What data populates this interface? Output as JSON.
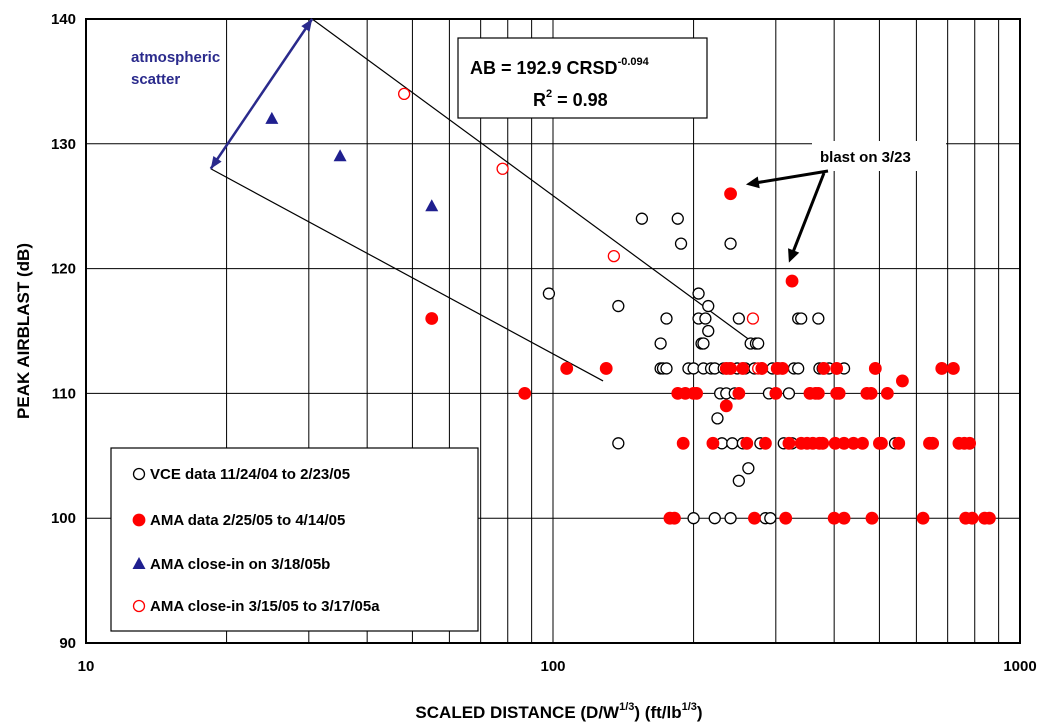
{
  "chart_data": {
    "type": "scatter",
    "title": "",
    "xlabel": {
      "base": "SCALED DISTANCE (D/W",
      "sup1": "1/3",
      "mid": ")  (ft/lb",
      "sup2": "1/3",
      "end": ")"
    },
    "ylabel": "PEAK AIRBLAST (dB)",
    "x_scale": "log",
    "xlim": [
      10,
      1000
    ],
    "ylim": [
      90,
      140
    ],
    "x_ticks": [
      10,
      100,
      1000
    ],
    "x_tick_labels": [
      "10",
      "100",
      "1000"
    ],
    "y_ticks": [
      90,
      100,
      110,
      120,
      130,
      140
    ],
    "y_tick_labels": [
      "90",
      "100",
      "110",
      "120",
      "130",
      "140"
    ],
    "grid": true,
    "legend_position": "bottom-left",
    "series": [
      {
        "name": "VCE data 11/24/04 to 2/23/05",
        "marker": "circle-open",
        "color": "#000000",
        "points": [
          [
            98,
            118
          ],
          [
            138,
            117
          ],
          [
            138,
            106
          ],
          [
            155,
            124
          ],
          [
            170,
            114
          ],
          [
            170,
            112
          ],
          [
            172,
            112
          ],
          [
            175,
            116
          ],
          [
            175,
            112
          ],
          [
            185,
            124
          ],
          [
            188,
            122
          ],
          [
            195,
            112
          ],
          [
            200,
            112
          ],
          [
            200,
            100
          ],
          [
            205,
            118
          ],
          [
            205,
            116
          ],
          [
            208,
            114
          ],
          [
            210,
            114
          ],
          [
            210,
            112
          ],
          [
            212,
            116
          ],
          [
            215,
            115
          ],
          [
            215,
            117
          ],
          [
            218,
            112
          ],
          [
            222,
            112
          ],
          [
            222,
            100
          ],
          [
            225,
            108
          ],
          [
            228,
            110
          ],
          [
            230,
            106
          ],
          [
            232,
            112
          ],
          [
            235,
            110
          ],
          [
            238,
            112
          ],
          [
            240,
            122
          ],
          [
            240,
            100
          ],
          [
            242,
            106
          ],
          [
            245,
            110
          ],
          [
            248,
            112
          ],
          [
            250,
            116
          ],
          [
            250,
            103
          ],
          [
            255,
            106
          ],
          [
            258,
            112
          ],
          [
            262,
            104
          ],
          [
            265,
            114
          ],
          [
            270,
            112
          ],
          [
            272,
            114
          ],
          [
            275,
            114
          ],
          [
            278,
            106
          ],
          [
            280,
            112
          ],
          [
            285,
            100
          ],
          [
            290,
            110
          ],
          [
            292,
            100
          ],
          [
            295,
            112
          ],
          [
            300,
            110
          ],
          [
            305,
            112
          ],
          [
            312,
            106
          ],
          [
            320,
            110
          ],
          [
            325,
            106
          ],
          [
            328,
            112
          ],
          [
            335,
            112
          ],
          [
            335,
            116
          ],
          [
            340,
            116
          ],
          [
            355,
            110
          ],
          [
            360,
            106
          ],
          [
            370,
            116
          ],
          [
            372,
            112
          ],
          [
            378,
            112
          ],
          [
            390,
            112
          ],
          [
            420,
            112
          ],
          [
            540,
            106
          ]
        ]
      },
      {
        "name": "AMA data 2/25/05 to 4/14/05",
        "marker": "circle-filled",
        "color": "#ff0000",
        "points": [
          [
            55,
            116
          ],
          [
            87,
            110
          ],
          [
            107,
            112
          ],
          [
            130,
            112
          ],
          [
            178,
            100
          ],
          [
            182,
            100
          ],
          [
            185,
            110
          ],
          [
            190,
            106
          ],
          [
            192,
            110
          ],
          [
            200,
            110
          ],
          [
            203,
            110
          ],
          [
            220,
            106
          ],
          [
            235,
            109
          ],
          [
            235,
            112
          ],
          [
            240,
            112
          ],
          [
            240,
            126
          ],
          [
            250,
            110
          ],
          [
            255,
            112
          ],
          [
            260,
            106
          ],
          [
            270,
            100
          ],
          [
            280,
            112
          ],
          [
            285,
            106
          ],
          [
            300,
            110
          ],
          [
            302,
            112
          ],
          [
            310,
            112
          ],
          [
            315,
            100
          ],
          [
            320,
            106
          ],
          [
            325,
            119
          ],
          [
            340,
            106
          ],
          [
            350,
            106
          ],
          [
            355,
            110
          ],
          [
            360,
            106
          ],
          [
            365,
            110
          ],
          [
            370,
            110
          ],
          [
            372,
            106
          ],
          [
            378,
            106
          ],
          [
            380,
            112
          ],
          [
            400,
            100
          ],
          [
            402,
            106
          ],
          [
            405,
            110
          ],
          [
            405,
            112
          ],
          [
            410,
            110
          ],
          [
            420,
            106
          ],
          [
            420,
            100
          ],
          [
            440,
            106
          ],
          [
            460,
            106
          ],
          [
            470,
            110
          ],
          [
            480,
            110
          ],
          [
            482,
            100
          ],
          [
            490,
            112
          ],
          [
            500,
            106
          ],
          [
            505,
            106
          ],
          [
            520,
            110
          ],
          [
            550,
            106
          ],
          [
            560,
            111
          ],
          [
            620,
            100
          ],
          [
            640,
            106
          ],
          [
            650,
            106
          ],
          [
            680,
            112
          ],
          [
            720,
            112
          ],
          [
            740,
            106
          ],
          [
            760,
            106
          ],
          [
            765,
            100
          ],
          [
            780,
            106
          ],
          [
            790,
            100
          ],
          [
            840,
            100
          ],
          [
            860,
            100
          ]
        ]
      },
      {
        "name": "AMA close-in on 3/18/05b",
        "marker": "triangle-filled",
        "color": "#1f1f8f",
        "points": [
          [
            25,
            132
          ],
          [
            35,
            129
          ],
          [
            55,
            125
          ]
        ]
      },
      {
        "name": "AMA close-in 3/15/05 to 3/17/05a",
        "marker": "circle-open",
        "color": "#ff0000",
        "points": [
          [
            48,
            134
          ],
          [
            78,
            128
          ],
          [
            135,
            121
          ],
          [
            268,
            116
          ],
          [
            275,
            112
          ]
        ]
      }
    ],
    "lines": [
      {
        "from": [
          30.5,
          140
        ],
        "to": [
          270,
          114
        ]
      },
      {
        "from": [
          18.5,
          128
        ],
        "to": [
          128,
          111
        ]
      }
    ],
    "scatter_arrow": {
      "from": [
        30.5,
        140
      ],
      "to": [
        18.5,
        128
      ]
    },
    "annotations": {
      "scatter_line1": "atmospheric",
      "scatter_line2": "scatter",
      "blast": "blast on 3/23",
      "blast_arrows": [
        {
          "to": [
            244,
            126.5
          ]
        },
        {
          "to": [
            320,
            120
          ]
        }
      ]
    },
    "equation": {
      "line1_base": "AB = 192.9 CRSD",
      "line1_exp": "-0.094",
      "line2_base": "R",
      "line2_exp": "2",
      "line2_rest": " = 0.98"
    }
  }
}
